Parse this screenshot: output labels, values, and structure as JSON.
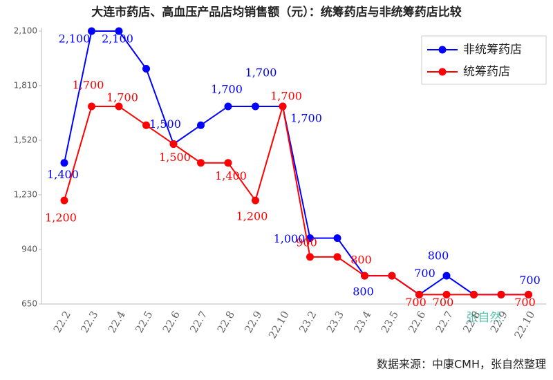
{
  "chart_data": {
    "type": "line",
    "title": "大连市药店、高血压产品店均销售额（元）：统筹药店与非统筹药店比较",
    "note": "数据来源：中康CMH，张自然整理",
    "watermark": "张自然",
    "categories": [
      "22.2",
      "22.3",
      "22.4",
      "22.5",
      "22.6",
      "22.7",
      "22.8",
      "22.9",
      "22.10",
      "23.2",
      "23.3",
      "23.4",
      "23.5",
      "22.6",
      "22.7",
      "22.8",
      "22.9",
      "22.10"
    ],
    "series": [
      {
        "name": "非统筹药店",
        "color": "#0000ff",
        "values": [
          1400,
          2100,
          2100,
          1900,
          1500,
          1600,
          1700,
          1700,
          1700,
          1000,
          1000,
          800,
          800,
          700,
          800,
          700,
          700,
          700
        ],
        "value_labels": [
          "1,400",
          "2,100",
          "2,100",
          null,
          "1,500",
          null,
          "1,700",
          "1,700",
          "1,700",
          "1,000",
          null,
          "800",
          null,
          "700",
          "800",
          null,
          null,
          "700"
        ]
      },
      {
        "name": "统筹药店",
        "color": "#ff0000",
        "values": [
          1200,
          1700,
          1700,
          1600,
          1500,
          1400,
          1400,
          1200,
          1700,
          900,
          900,
          800,
          800,
          700,
          700,
          700,
          700,
          700
        ],
        "value_labels": [
          "1,200",
          "1,700",
          "1,700",
          null,
          "1,500",
          null,
          "1,400",
          "1,200",
          "1,700",
          "900",
          null,
          "800",
          null,
          "700",
          "700",
          null,
          null,
          "700"
        ]
      }
    ],
    "ylim": [
      650,
      2100
    ],
    "yticks": [
      650,
      940,
      {
        "value": 1230,
        "label": "1,230"
      },
      {
        "value": 1520,
        "label": "1,520"
      },
      {
        "value": 1810,
        "label": "1,810"
      },
      {
        "value": 2100,
        "label": "2,100"
      }
    ],
    "legend": "upper right"
  }
}
